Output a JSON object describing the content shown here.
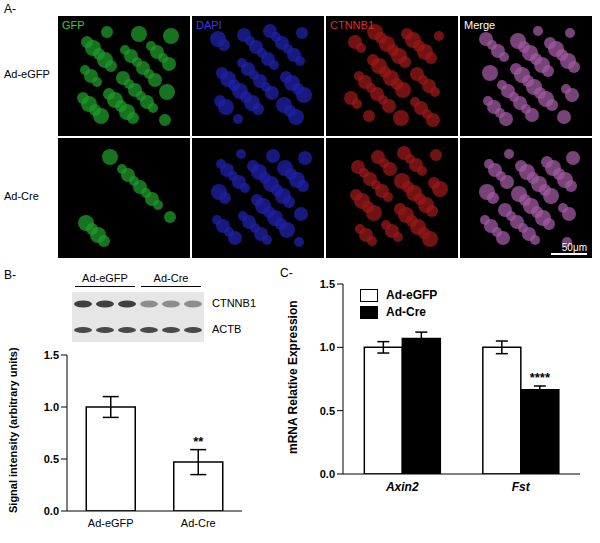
{
  "panel_a": {
    "label": "A-",
    "columns": [
      "GFP",
      "DAPI",
      "CTNNB1",
      "Merge"
    ],
    "rows": [
      "Ad-eGFP",
      "Ad-Cre"
    ],
    "scale_bar": "50μm"
  },
  "chart_data": [
    {
      "panel_label": "B-",
      "type": "bar",
      "blot": {
        "lanes": [
          "Ad-eGFP",
          "Ad-Cre"
        ],
        "bands": [
          "CTNNB1",
          "ACTB"
        ]
      },
      "ylabel": "Signal intensity (arbitrary units)",
      "categories": [
        "Ad-eGFP",
        "Ad-Cre"
      ],
      "values": [
        1.0,
        0.47
      ],
      "errors": [
        0.1,
        0.12
      ],
      "color": "#ffffff",
      "ylim": [
        0,
        1.5
      ],
      "yticks": [
        {
          "value": 0,
          "label": "0.0"
        },
        {
          "value": 0.5,
          "label": "0.5"
        },
        {
          "value": 1,
          "label": "1.0"
        },
        {
          "value": 1.5,
          "label": "1.5"
        }
      ],
      "annotations": [
        {
          "category": "Ad-Cre",
          "text": "**"
        }
      ]
    },
    {
      "panel_label": "C-",
      "type": "bar",
      "ylabel": "mRNA Relative Expression",
      "categories": [
        "Axin2",
        "Fst"
      ],
      "series": [
        {
          "name": "Ad-eGFP",
          "color": "#ffffff",
          "values": [
            1.0,
            1.0
          ],
          "errors": [
            0.045,
            0.05
          ]
        },
        {
          "name": "Ad-Cre",
          "color": "#000000",
          "values": [
            1.07,
            0.665
          ],
          "errors": [
            0.05,
            0.03
          ]
        }
      ],
      "legend": "top-left",
      "ylim": [
        0,
        1.5
      ],
      "yticks": [
        {
          "value": 0,
          "label": "0.0"
        },
        {
          "value": 0.5,
          "label": "0.5"
        },
        {
          "value": 1,
          "label": "1.0"
        },
        {
          "value": 1.5,
          "label": "1.5"
        }
      ],
      "annotations": [
        {
          "series": "Ad-Cre",
          "category": "Fst",
          "text": "****"
        }
      ]
    }
  ]
}
